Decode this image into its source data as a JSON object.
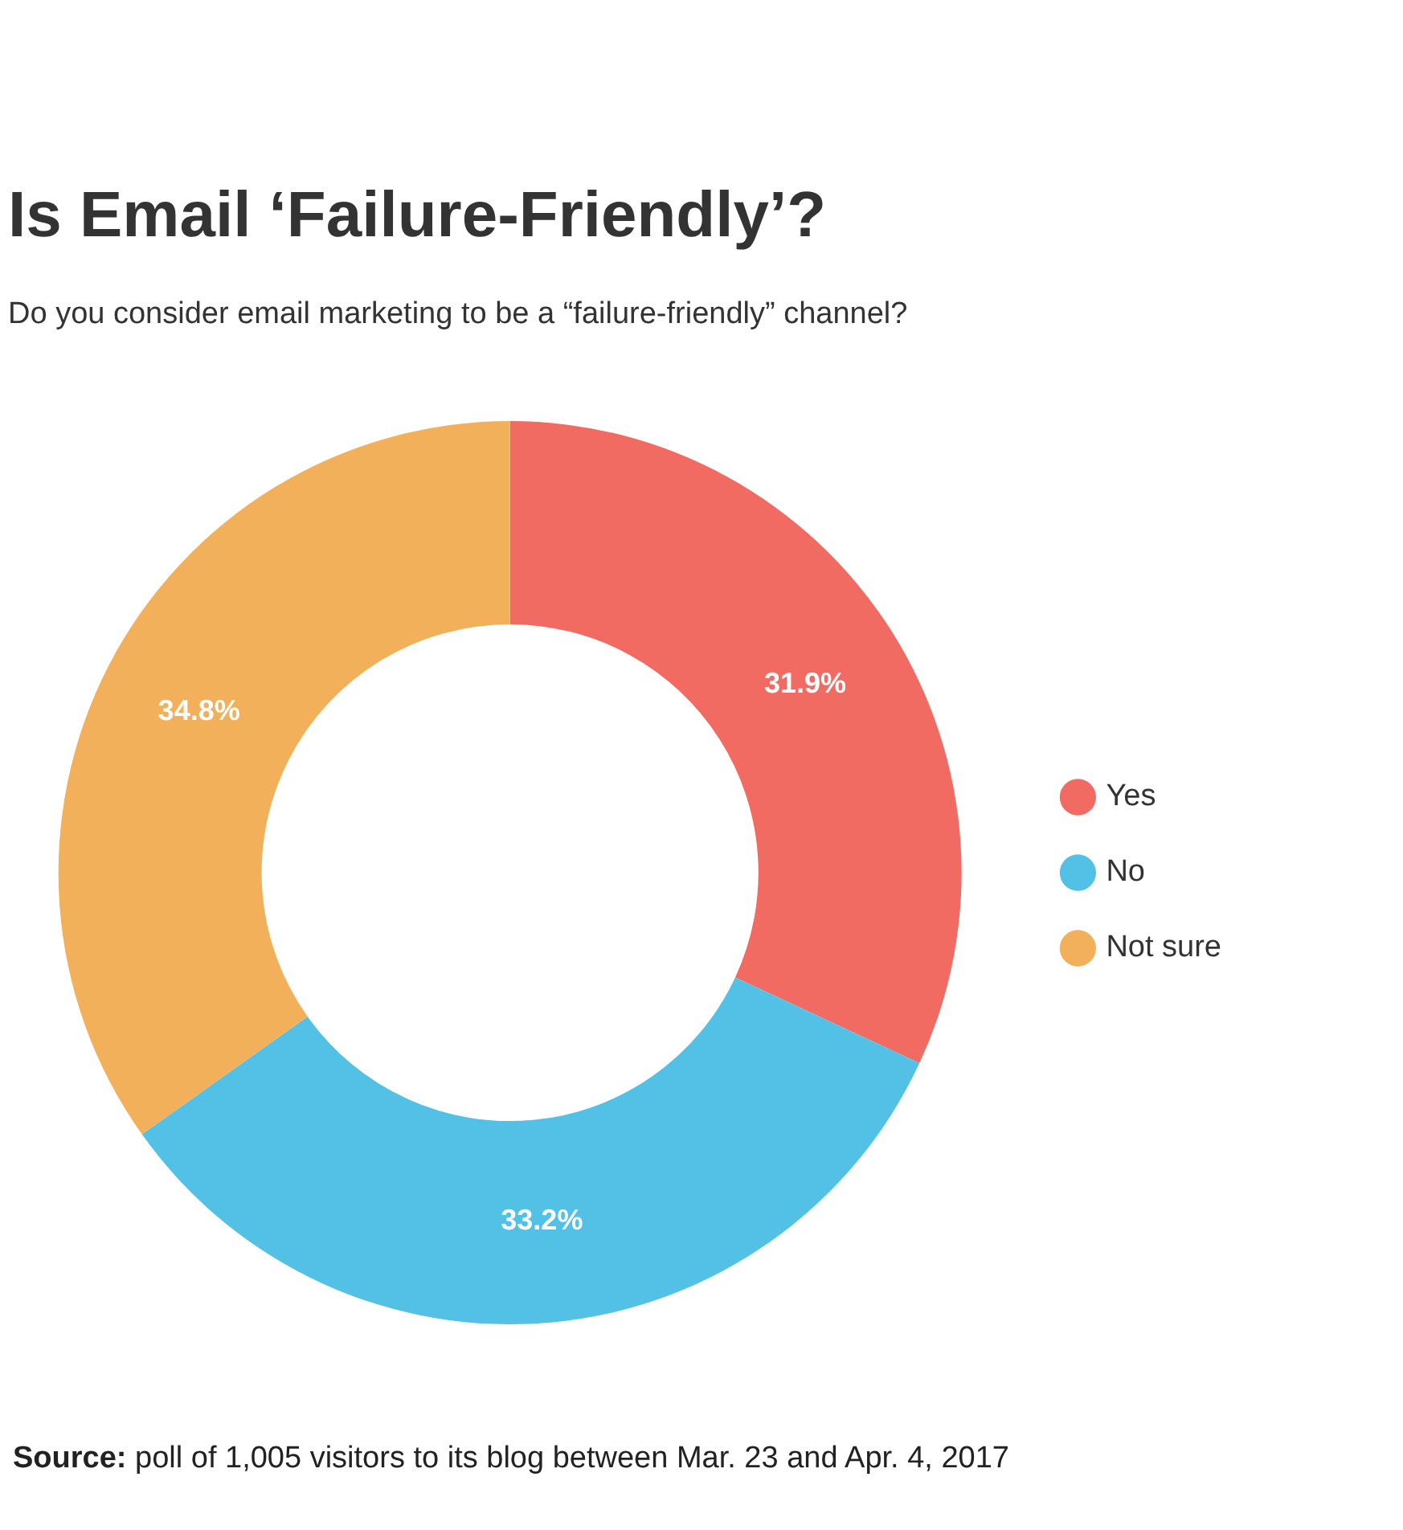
{
  "chart_data": {
    "type": "donut",
    "title": "Is Email ‘Failure-Friendly’?",
    "subtitle": "Do you consider email marketing to be a “failure-friendly” channel?",
    "categories": [
      "Yes",
      "No",
      "Not sure"
    ],
    "values": [
      31.9,
      33.2,
      34.8
    ],
    "colors": [
      "#f26b63",
      "#53c1e5",
      "#f2b05b"
    ],
    "value_labels": [
      "31.9%",
      "33.2%",
      "34.8%"
    ],
    "legend": "right",
    "annotations": [
      "Source: poll of 1,005 visitors to its blog between Mar. 23 and Apr. 4, 2017"
    ]
  }
}
